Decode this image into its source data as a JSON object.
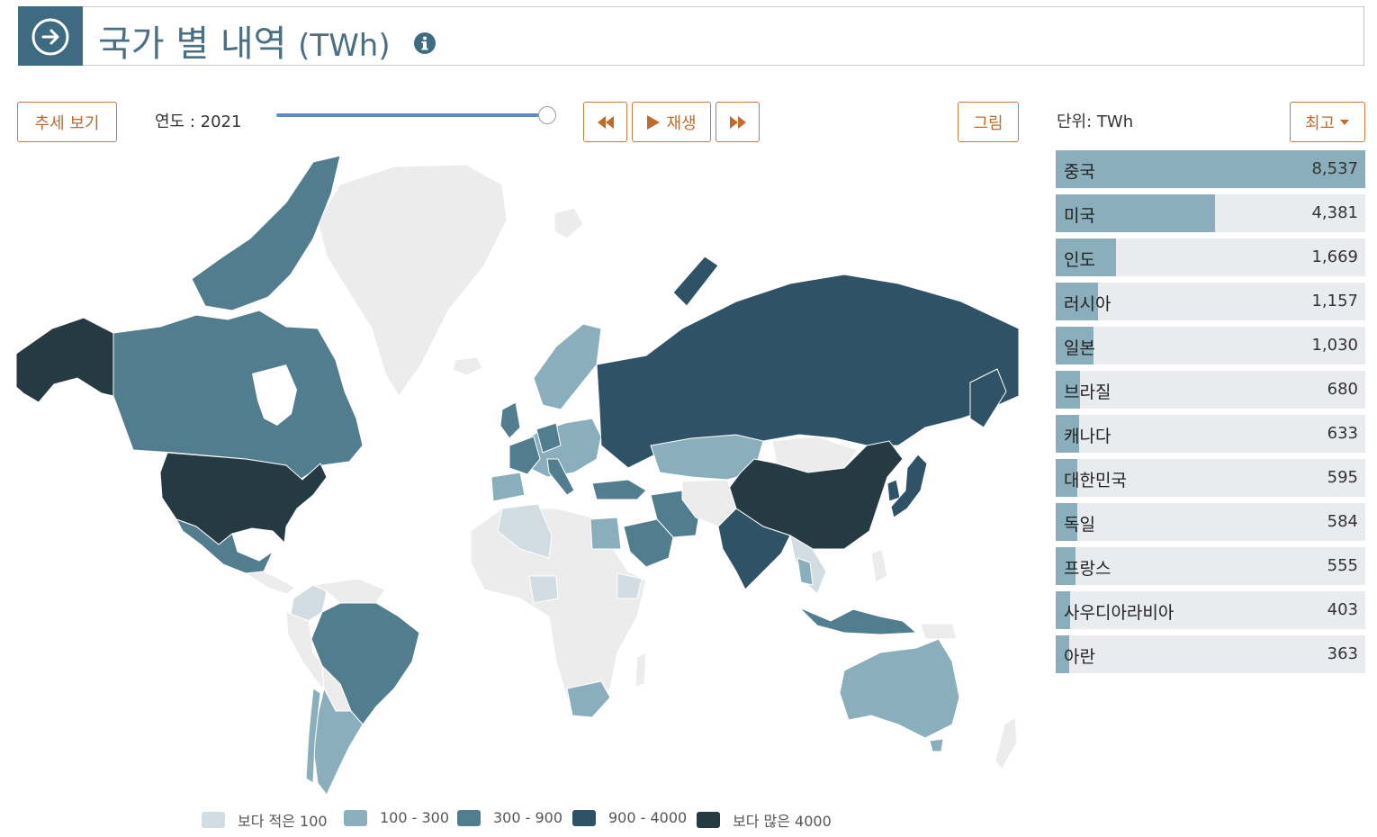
{
  "header": {
    "title": "국가 별 내역",
    "unit": "(TWh)",
    "icon": "arrow-circle-right-icon",
    "info_icon": "info-icon"
  },
  "controls": {
    "trend_button": "추세 보기",
    "year_label": "연도 : 2021",
    "year": 2021,
    "slider_position": 1.0,
    "rewind_icon": "rewind-icon",
    "play_label": "재생",
    "forward_icon": "fast-forward-icon",
    "chart_button": "그림",
    "unit_label": "단위: TWh",
    "sort_button": "최고"
  },
  "legend": [
    {
      "label": "보다 적은 100",
      "color": "#d1dde2"
    },
    {
      "label": "100 - 300",
      "color": "#8aaebc"
    },
    {
      "label": "300 - 900",
      "color": "#527d8e"
    },
    {
      "label": "900 - 4000",
      "color": "#2f5267"
    },
    {
      "label": "보다 많은 4000",
      "color": "#263a44"
    }
  ],
  "ranking": {
    "max": 8537,
    "bar_color": "#8aaebc",
    "items": [
      {
        "name": "중국",
        "value": 8537,
        "display": "8,537"
      },
      {
        "name": "미국",
        "value": 4381,
        "display": "4,381"
      },
      {
        "name": "인도",
        "value": 1669,
        "display": "1,669"
      },
      {
        "name": "러시아",
        "value": 1157,
        "display": "1,157"
      },
      {
        "name": "일본",
        "value": 1030,
        "display": "1,030"
      },
      {
        "name": "브라질",
        "value": 680,
        "display": "680"
      },
      {
        "name": "캐나다",
        "value": 633,
        "display": "633"
      },
      {
        "name": "대한민국",
        "value": 595,
        "display": "595"
      },
      {
        "name": "독일",
        "value": 584,
        "display": "584"
      },
      {
        "name": "프랑스",
        "value": 555,
        "display": "555"
      },
      {
        "name": "사우디아라비아",
        "value": 403,
        "display": "403"
      },
      {
        "name": "아란",
        "value": 363,
        "display": "363"
      }
    ]
  }
}
